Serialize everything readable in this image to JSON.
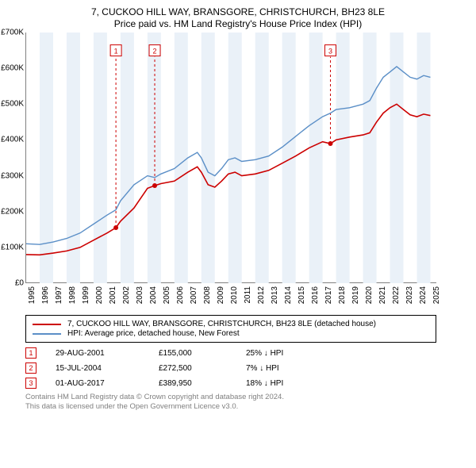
{
  "chart": {
    "type": "line",
    "title_main": "7, CUCKOO HILL WAY, BRANSGORE, CHRISTCHURCH, BH23 8LE",
    "title_sub": "Price paid vs. HM Land Registry's House Price Index (HPI)",
    "title_fontsize": 12,
    "background_color": "#ffffff",
    "axis_color": "#808080",
    "band_color": "#eaf1f8",
    "ylim": [
      0,
      700000
    ],
    "y_ticks": [
      {
        "v": 0,
        "label": "£0"
      },
      {
        "v": 100000,
        "label": "£100K"
      },
      {
        "v": 200000,
        "label": "£200K"
      },
      {
        "v": 300000,
        "label": "£300K"
      },
      {
        "v": 400000,
        "label": "£400K"
      },
      {
        "v": 500000,
        "label": "£500K"
      },
      {
        "v": 600000,
        "label": "£600K"
      },
      {
        "v": 700000,
        "label": "£700K"
      }
    ],
    "xlim": [
      1995,
      2025.5
    ],
    "x_ticks": [
      1995,
      1996,
      1997,
      1998,
      1999,
      2000,
      2001,
      2002,
      2003,
      2004,
      2005,
      2006,
      2007,
      2008,
      2009,
      2010,
      2011,
      2012,
      2013,
      2014,
      2015,
      2016,
      2017,
      2018,
      2019,
      2020,
      2021,
      2022,
      2023,
      2024,
      2025
    ],
    "x_bands": [
      1996,
      1998,
      2000,
      2002,
      2004,
      2006,
      2008,
      2010,
      2012,
      2014,
      2016,
      2018,
      2020,
      2022,
      2024
    ],
    "series": [
      {
        "name": "hpi",
        "label": "HPI: Average price, detached house, New Forest",
        "color": "#5b8fc7",
        "width": 1.4,
        "points": [
          [
            1995.0,
            110000
          ],
          [
            1996.0,
            108000
          ],
          [
            1997.0,
            115000
          ],
          [
            1998.0,
            125000
          ],
          [
            1999.0,
            140000
          ],
          [
            2000.0,
            165000
          ],
          [
            2001.0,
            190000
          ],
          [
            2001.66,
            205000
          ],
          [
            2002.0,
            230000
          ],
          [
            2003.0,
            275000
          ],
          [
            2004.0,
            300000
          ],
          [
            2004.54,
            295000
          ],
          [
            2005.0,
            305000
          ],
          [
            2006.0,
            320000
          ],
          [
            2007.0,
            350000
          ],
          [
            2007.7,
            365000
          ],
          [
            2008.0,
            350000
          ],
          [
            2008.5,
            310000
          ],
          [
            2009.0,
            300000
          ],
          [
            2009.5,
            320000
          ],
          [
            2010.0,
            345000
          ],
          [
            2010.5,
            350000
          ],
          [
            2011.0,
            340000
          ],
          [
            2012.0,
            345000
          ],
          [
            2013.0,
            355000
          ],
          [
            2014.0,
            380000
          ],
          [
            2015.0,
            410000
          ],
          [
            2016.0,
            440000
          ],
          [
            2017.0,
            465000
          ],
          [
            2017.58,
            475000
          ],
          [
            2018.0,
            485000
          ],
          [
            2019.0,
            490000
          ],
          [
            2020.0,
            500000
          ],
          [
            2020.5,
            510000
          ],
          [
            2021.0,
            545000
          ],
          [
            2021.5,
            575000
          ],
          [
            2022.0,
            590000
          ],
          [
            2022.5,
            605000
          ],
          [
            2023.0,
            590000
          ],
          [
            2023.5,
            575000
          ],
          [
            2024.0,
            570000
          ],
          [
            2024.5,
            580000
          ],
          [
            2025.0,
            575000
          ]
        ]
      },
      {
        "name": "property",
        "label": "7, CUCKOO HILL WAY, BRANSGORE, CHRISTCHURCH, BH23 8LE (detached house)",
        "color": "#cc0000",
        "width": 1.6,
        "points": [
          [
            1995.0,
            80000
          ],
          [
            1996.0,
            79000
          ],
          [
            1997.0,
            84000
          ],
          [
            1998.0,
            90000
          ],
          [
            1999.0,
            100000
          ],
          [
            2000.0,
            120000
          ],
          [
            2001.0,
            140000
          ],
          [
            2001.66,
            155000
          ],
          [
            2002.0,
            173000
          ],
          [
            2003.0,
            210000
          ],
          [
            2004.0,
            265000
          ],
          [
            2004.54,
            272500
          ],
          [
            2005.0,
            278000
          ],
          [
            2006.0,
            285000
          ],
          [
            2007.0,
            310000
          ],
          [
            2007.7,
            325000
          ],
          [
            2008.0,
            310000
          ],
          [
            2008.5,
            275000
          ],
          [
            2009.0,
            268000
          ],
          [
            2009.5,
            285000
          ],
          [
            2010.0,
            305000
          ],
          [
            2010.5,
            310000
          ],
          [
            2011.0,
            300000
          ],
          [
            2012.0,
            305000
          ],
          [
            2013.0,
            315000
          ],
          [
            2014.0,
            335000
          ],
          [
            2015.0,
            355000
          ],
          [
            2016.0,
            378000
          ],
          [
            2017.0,
            395000
          ],
          [
            2017.58,
            389950
          ],
          [
            2018.0,
            400000
          ],
          [
            2019.0,
            408000
          ],
          [
            2020.0,
            414000
          ],
          [
            2020.5,
            420000
          ],
          [
            2021.0,
            450000
          ],
          [
            2021.5,
            475000
          ],
          [
            2022.0,
            490000
          ],
          [
            2022.5,
            500000
          ],
          [
            2023.0,
            485000
          ],
          [
            2023.5,
            470000
          ],
          [
            2024.0,
            465000
          ],
          [
            2024.5,
            472000
          ],
          [
            2025.0,
            468000
          ]
        ]
      }
    ],
    "markers": [
      {
        "n": "1",
        "x": 2001.66,
        "y": 155000,
        "label_y": 650000,
        "dash_color": "#cc0000"
      },
      {
        "n": "2",
        "x": 2004.54,
        "y": 272500,
        "label_y": 650000,
        "dash_color": "#cc0000"
      },
      {
        "n": "3",
        "x": 2017.58,
        "y": 389950,
        "label_y": 650000,
        "dash_color": "#cc0000"
      }
    ],
    "marker_box_border": "#cc0000",
    "marker_box_text": "#cc0000",
    "sale_dot_color": "#cc0000",
    "sale_dot_radius": 3
  },
  "legend": {
    "border_color": "#000000",
    "rows": [
      {
        "color": "#cc0000",
        "label_ref": "chart.series.1.label"
      },
      {
        "color": "#5b8fc7",
        "label_ref": "chart.series.0.label"
      }
    ]
  },
  "sales": [
    {
      "n": "1",
      "date": "29-AUG-2001",
      "price": "£155,000",
      "delta": "25% ↓ HPI"
    },
    {
      "n": "2",
      "date": "15-JUL-2004",
      "price": "£272,500",
      "delta": "7% ↓ HPI"
    },
    {
      "n": "3",
      "date": "01-AUG-2017",
      "price": "£389,950",
      "delta": "18% ↓ HPI"
    }
  ],
  "footer": {
    "line1": "Contains HM Land Registry data © Crown copyright and database right 2024.",
    "line2": "This data is licensed under the Open Government Licence v3.0.",
    "color": "#808080"
  }
}
